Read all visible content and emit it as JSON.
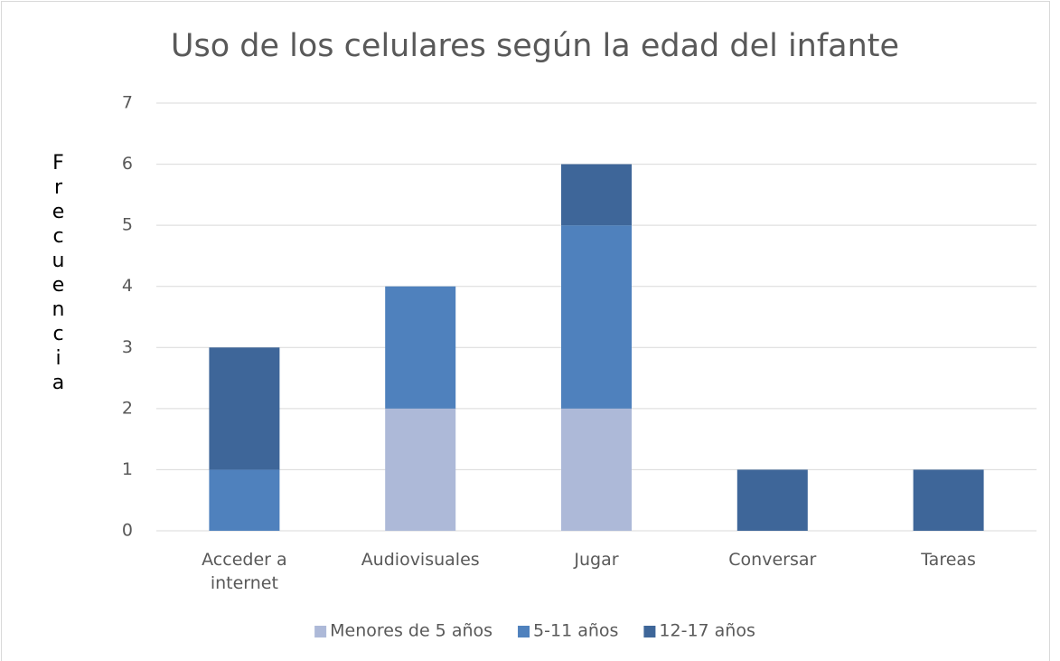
{
  "chart_data": {
    "type": "stacked_bar",
    "title": "Uso de los celulares según la edad del infante",
    "y_label": "Frecuencia",
    "categories": [
      "Acceder a internet",
      "Audiovisuales",
      "Jugar",
      "Conversar",
      "Tareas"
    ],
    "series": [
      {
        "name": "Menores de 5 años",
        "color": "#adb9d8",
        "values": [
          0,
          2,
          2,
          0,
          0
        ]
      },
      {
        "name": "5-11 años",
        "color": "#4f81bd",
        "values": [
          1,
          2,
          3,
          0,
          0
        ]
      },
      {
        "name": "12-17 años",
        "color": "#3e6699",
        "values": [
          2,
          0,
          1,
          1,
          1
        ]
      }
    ],
    "ylim": [
      0,
      7
    ],
    "yticks": [
      0,
      1,
      2,
      3,
      4,
      5,
      6,
      7
    ],
    "grid": true,
    "legend": "bottom"
  }
}
